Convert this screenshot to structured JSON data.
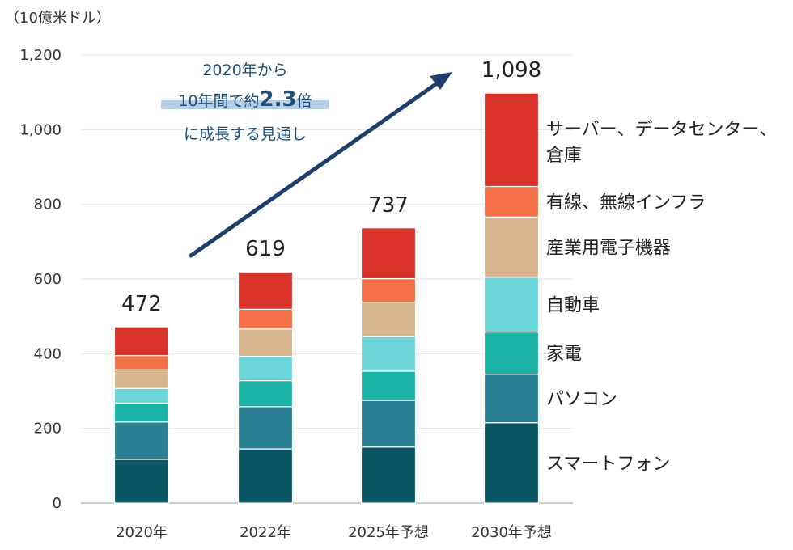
{
  "chart_data": {
    "type": "bar",
    "stacked": true,
    "unit_label": "（10億米ドル）",
    "categories": [
      "2020年",
      "2022年",
      "2025年予想",
      "2030年予想"
    ],
    "totals": [
      "472",
      "619",
      "737",
      "1,098"
    ],
    "ylim": [
      0,
      1200
    ],
    "yticks": [
      "0",
      "200",
      "400",
      "600",
      "800",
      "1,000",
      "1,200"
    ],
    "grid": true,
    "series": [
      {
        "name": "スマートフォン",
        "color": "#0a5563",
        "values": [
          117,
          145,
          150,
          215
        ]
      },
      {
        "name": "パソコン",
        "color": "#2b7f93",
        "values": [
          100,
          113,
          125,
          130
        ]
      },
      {
        "name": "家電",
        "color": "#1ab3a6",
        "values": [
          50,
          70,
          78,
          113
        ]
      },
      {
        "name": "自動車",
        "color": "#6dd6d9",
        "values": [
          40,
          65,
          93,
          147
        ]
      },
      {
        "name": "産業用電子機器",
        "color": "#d8b58d",
        "values": [
          50,
          73,
          92,
          161
        ]
      },
      {
        "name": "有線、無線インフラ",
        "color": "#f36f45",
        "values": [
          38,
          53,
          63,
          82
        ]
      },
      {
        "name": "サーバー、データセンター、倉庫",
        "color": "#d8322b",
        "values": [
          77,
          100,
          136,
          250
        ]
      }
    ],
    "annotation": {
      "line1": "2020年から",
      "line2_pre": "10年間で約",
      "line2_big": "2.3",
      "line2_post": "倍",
      "line3": "に成長する見通し",
      "arrow_color": "#1f3e6b",
      "highlight_color": "#b8cde6"
    }
  }
}
